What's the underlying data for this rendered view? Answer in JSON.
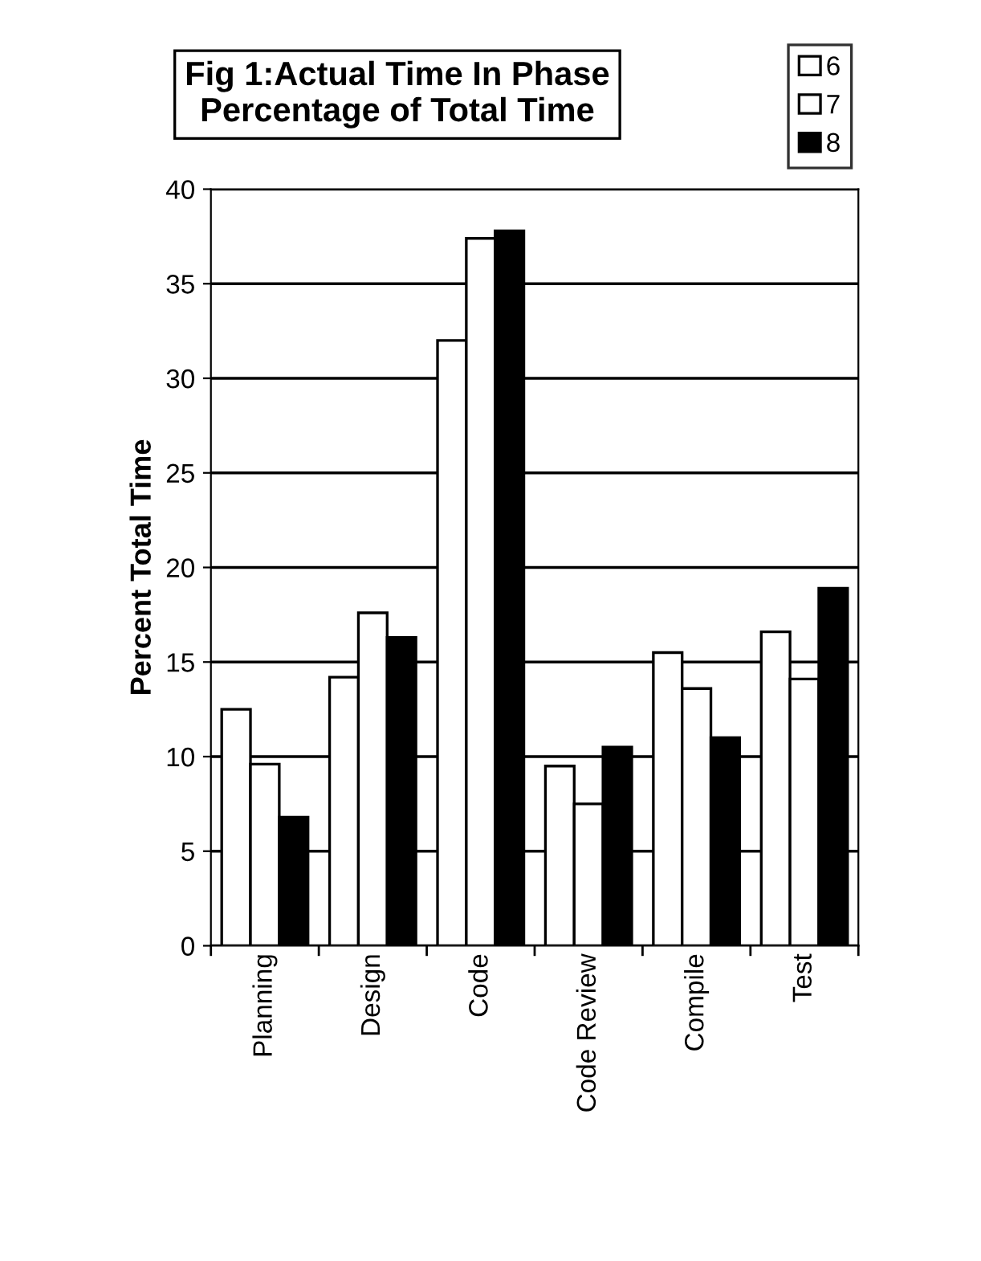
{
  "chart_data": {
    "type": "bar",
    "title": "Fig 1:Actual Time In Phase\nPercentage of Total Time",
    "ylabel": "Percent Total Time",
    "categories": [
      "Planning",
      "Design",
      "Code",
      "Code Review",
      "Compile",
      "Test"
    ],
    "series": [
      {
        "name": "6",
        "color": "#ffffff",
        "values": [
          12.5,
          14.2,
          32.0,
          9.5,
          15.5,
          16.6
        ]
      },
      {
        "name": "7",
        "color": "#ffffff",
        "values": [
          9.6,
          17.6,
          37.4,
          7.5,
          13.6,
          14.1
        ]
      },
      {
        "name": "8",
        "color": "#000000",
        "values": [
          6.8,
          16.3,
          37.8,
          10.5,
          11.0,
          18.9
        ]
      }
    ],
    "ylim": [
      0,
      40
    ],
    "yticks": [
      0,
      5,
      10,
      15,
      20,
      25,
      30,
      35,
      40
    ],
    "grid": "y",
    "legend": "top right"
  }
}
